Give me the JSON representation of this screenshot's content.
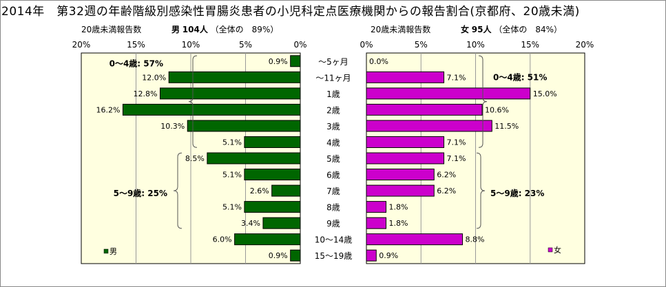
{
  "title": "2014年　第32週の年齢階級別感染性胃腸炎患者の小児科定点医療機関からの報告割合(京都府、20歳未満)",
  "left_header": {
    "label": "20歳未満報告数",
    "sex": "男",
    "count": "104人",
    "ratio": "（全体の　89%）"
  },
  "right_header": {
    "label": "20歳未満報告数",
    "sex": "女",
    "count": "95人",
    "ratio": "（全体の　84%）"
  },
  "chart_data": [
    {
      "type": "bar",
      "orientation": "horizontal",
      "direction": "right-to-left",
      "series": [
        {
          "name": "男",
          "values": [
            0.9,
            12.0,
            12.8,
            16.2,
            10.3,
            5.1,
            8.5,
            5.1,
            2.6,
            5.1,
            3.4,
            6.0,
            0.9
          ]
        }
      ],
      "categories": [
        "～5ヶ月",
        "～11ヶ月",
        "1歳",
        "2歳",
        "3歳",
        "4歳",
        "5歳",
        "6歳",
        "7歳",
        "8歳",
        "9歳",
        "10～14歳",
        "15～19歳"
      ],
      "value_labels": [
        "0.9%",
        "12.0%",
        "12.8%",
        "16.2%",
        "10.3%",
        "5.1%",
        "8.5%",
        "5.1%",
        "2.6%",
        "5.1%",
        "3.4%",
        "6.0%",
        "0.9%"
      ],
      "xlim": [
        0,
        20
      ],
      "ticks": [
        "20%",
        "15%",
        "10%",
        "5%",
        "0%"
      ],
      "color": "#006600",
      "legend": "bottom-left",
      "annotations": [
        "0～4歳: 57%",
        "5～9歳: 25%"
      ]
    },
    {
      "type": "bar",
      "orientation": "horizontal",
      "direction": "left-to-right",
      "series": [
        {
          "name": "女",
          "values": [
            0.0,
            7.1,
            15.0,
            10.6,
            11.5,
            7.1,
            7.1,
            6.2,
            6.2,
            1.8,
            1.8,
            8.8,
            0.9
          ]
        }
      ],
      "categories": [
        "～5ヶ月",
        "～11ヶ月",
        "1歳",
        "2歳",
        "3歳",
        "4歳",
        "5歳",
        "6歳",
        "7歳",
        "8歳",
        "9歳",
        "10～14歳",
        "15～19歳"
      ],
      "value_labels": [
        "0.0%",
        "7.1%",
        "15.0%",
        "10.6%",
        "11.5%",
        "7.1%",
        "7.1%",
        "6.2%",
        "6.2%",
        "1.8%",
        "1.8%",
        "8.8%",
        "0.9%"
      ],
      "xlim": [
        0,
        20
      ],
      "ticks": [
        "0%",
        "5%",
        "10%",
        "15%",
        "20%"
      ],
      "color": "#cc00cc",
      "legend": "bottom-left",
      "annotations": [
        "0～4歳: 51%",
        "5～9歳: 23%"
      ]
    }
  ],
  "colors": {
    "male": "#006600",
    "female": "#cc00cc",
    "plot_bg": "#ffffe0"
  }
}
